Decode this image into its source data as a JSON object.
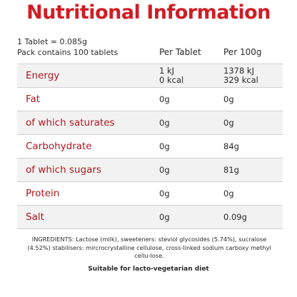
{
  "title": "Nutritional Information",
  "serving": "1 Tablet = 0.085g",
  "pack": "Pack contains 100 tablets",
  "columns": {
    "per_tablet": "Per Tablet",
    "per_100g": "Per 100g"
  },
  "rows": [
    {
      "name": "Energy",
      "per_tablet": [
        "1 kJ",
        "0 kcal"
      ],
      "per_100g": [
        "1378 kJ",
        "329 kcal"
      ]
    },
    {
      "name": "Fat",
      "per_tablet": "0g",
      "per_100g": "0g"
    },
    {
      "name": "of which saturates",
      "per_tablet": "0g",
      "per_100g": "0g"
    },
    {
      "name": "Carbohydrate",
      "per_tablet": "0g",
      "per_100g": "84g"
    },
    {
      "name": "of which sugars",
      "per_tablet": "0g",
      "per_100g": "81g"
    },
    {
      "name": "Protein",
      "per_tablet": "0g",
      "per_100g": "0g"
    },
    {
      "name": "Salt",
      "per_tablet": "0g",
      "per_100g": "0.09g"
    }
  ],
  "ingredients": "INGREDIENTS: Lactose (milk), sweeteners: steviol glycosides (5.74%), sucralose (4.52%) stabilisers: mircrocrystalline cellulose, cross-linked sodium carboxy methyl cellu-lose.",
  "suitable": "Suitable for lacto-vegetarian diet"
}
